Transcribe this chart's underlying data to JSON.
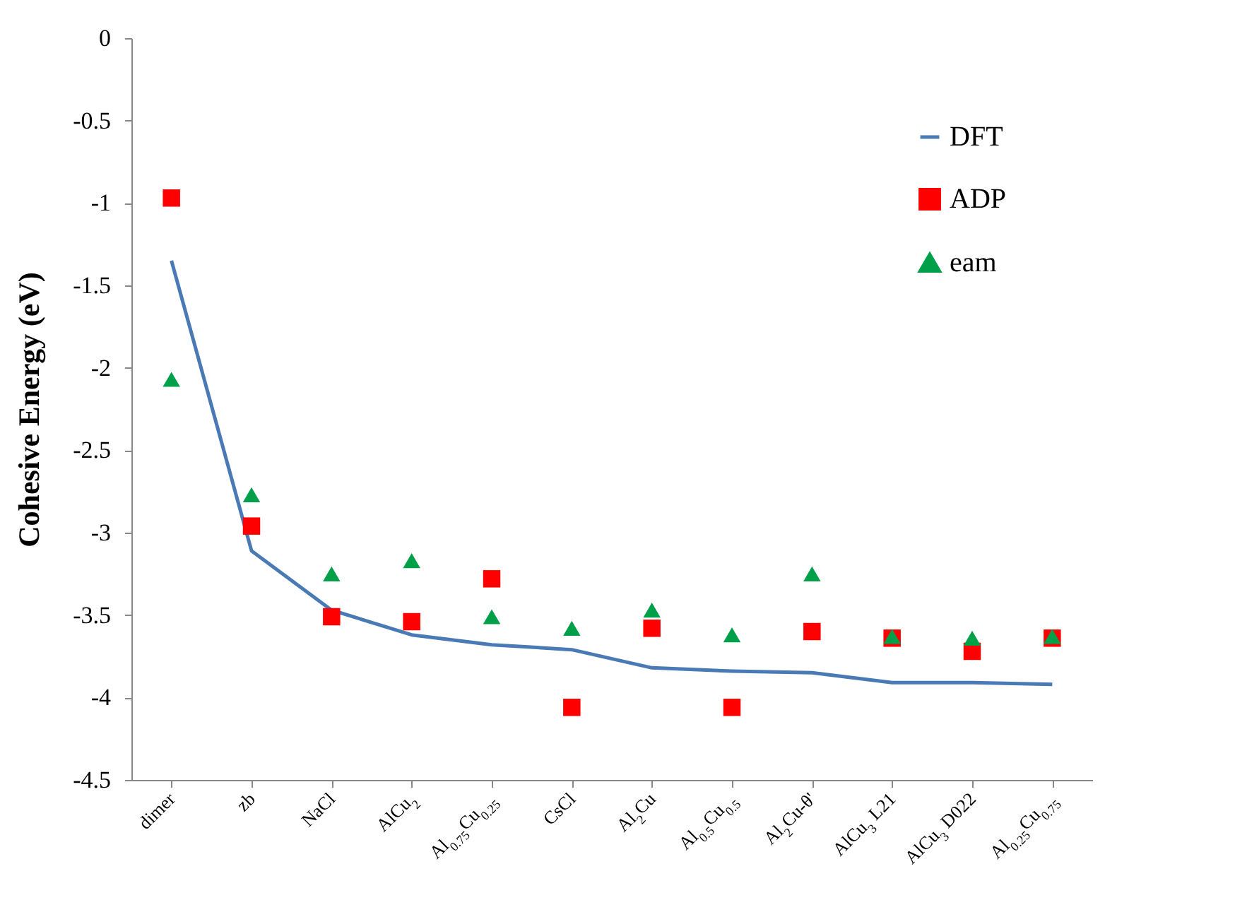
{
  "chart_data": {
    "type": "line",
    "ylabel": "Cohesive Energy (eV)",
    "categories": [
      "dimer",
      "zb",
      "NaCl",
      "AlCu$_{2}$",
      "Al$_{0.75}$Cu$_{0.25}$",
      "CsCl",
      "Al$_{2}$Cu",
      "Al$_{0.5}$Cu$_{0.5}$",
      "Al$_{2}$Cu-θ'",
      "AlCu$_{3}$ L21",
      "AlCu$_{3}$ D022",
      "Al$_{0.25}$Cu$_{0.75}$"
    ],
    "series": [
      {
        "name": "DFT",
        "marker": "none",
        "color": "#4a7ab5",
        "values": [
          -1.35,
          -3.11,
          -3.47,
          -3.62,
          -3.68,
          -3.71,
          -3.82,
          -3.84,
          -3.85,
          -3.91,
          -3.91,
          -3.92
        ]
      },
      {
        "name": "ADP",
        "type": "scatter",
        "marker": "square",
        "color": "#ff0000",
        "values": [
          -0.97,
          -2.96,
          -3.51,
          -3.54,
          -3.28,
          -4.06,
          -3.58,
          -4.06,
          -3.6,
          -3.64,
          -3.72,
          -3.64
        ]
      },
      {
        "name": "eam",
        "type": "scatter",
        "marker": "triangle",
        "color": "#00a04a",
        "values": [
          -2.07,
          -2.77,
          -3.25,
          -3.17,
          -3.51,
          -3.58,
          -3.47,
          -3.62,
          -3.25,
          -3.63,
          -3.64,
          -3.63
        ]
      }
    ],
    "ylim": [
      -4.5,
      0
    ],
    "yticks": [
      -4.5,
      -4,
      -3.5,
      -3,
      -2.5,
      -2,
      -1.5,
      -1,
      -0.5,
      0
    ],
    "grid": false,
    "legend": "top right"
  }
}
